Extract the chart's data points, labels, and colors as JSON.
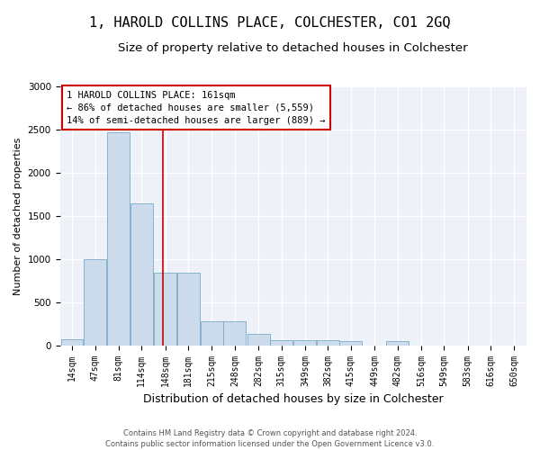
{
  "title": "1, HAROLD COLLINS PLACE, COLCHESTER, CO1 2GQ",
  "subtitle": "Size of property relative to detached houses in Colchester",
  "xlabel": "Distribution of detached houses by size in Colchester",
  "ylabel": "Number of detached properties",
  "footer_line1": "Contains HM Land Registry data © Crown copyright and database right 2024.",
  "footer_line2": "Contains public sector information licensed under the Open Government Licence v3.0.",
  "annotation_line1": "1 HAROLD COLLINS PLACE: 161sqm",
  "annotation_line2": "← 86% of detached houses are smaller (5,559)",
  "annotation_line3": "14% of semi-detached houses are larger (889) →",
  "subject_size": 161,
  "bar_color": "#ccdcec",
  "bar_edge_color": "#7aaaca",
  "vline_color": "#cc0000",
  "background_color": "#eef2f8",
  "bins_left": [
    14,
    47,
    81,
    114,
    148,
    181,
    215,
    248,
    282,
    315,
    349,
    382,
    415,
    449,
    482,
    516,
    549,
    583,
    616,
    650
  ],
  "bin_width": 33,
  "counts": [
    75,
    1000,
    2470,
    1650,
    840,
    840,
    280,
    280,
    130,
    60,
    60,
    55,
    50,
    0,
    50,
    0,
    0,
    0,
    0,
    0
  ],
  "ylim": [
    0,
    3000
  ],
  "yticks": [
    0,
    500,
    1000,
    1500,
    2000,
    2500,
    3000
  ],
  "xtick_labels": [
    "14sqm",
    "47sqm",
    "81sqm",
    "114sqm",
    "148sqm",
    "181sqm",
    "215sqm",
    "248sqm",
    "282sqm",
    "315sqm",
    "349sqm",
    "382sqm",
    "415sqm",
    "449sqm",
    "482sqm",
    "516sqm",
    "549sqm",
    "583sqm",
    "616sqm",
    "650sqm"
  ],
  "title_fontsize": 11,
  "subtitle_fontsize": 9.5,
  "xlabel_fontsize": 9,
  "ylabel_fontsize": 8,
  "annotation_fontsize": 7.5,
  "tick_fontsize": 7
}
